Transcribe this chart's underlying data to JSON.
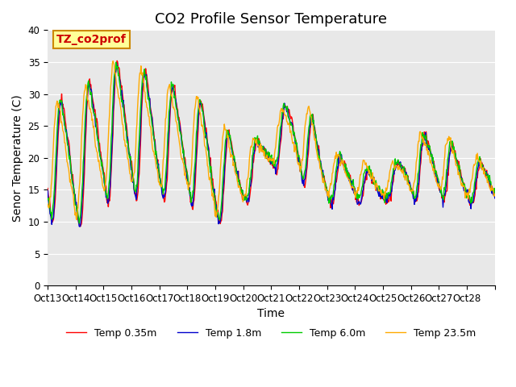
{
  "title": "CO2 Profile Sensor Temperature",
  "ylabel": "Senor Temperature (C)",
  "xlabel": "Time",
  "annotation": "TZ_co2prof",
  "annotation_color": "#cc0000",
  "annotation_bg": "#ffff99",
  "annotation_border": "#cc8800",
  "ylim": [
    0,
    40
  ],
  "yticks": [
    0,
    5,
    10,
    15,
    20,
    25,
    30,
    35,
    40
  ],
  "xtick_labels": [
    "Oct 13",
    "Oct 14",
    "Oct 15",
    "Oct 16",
    "Oct 17",
    "Oct 18",
    "Oct 19",
    "Oct 20",
    "Oct 21",
    "Oct 22",
    "Oct 23",
    "Oct 24",
    "Oct 25",
    "Oct 26",
    "Oct 27",
    "Oct 28"
  ],
  "legend": [
    "Temp 0.35m",
    "Temp 1.8m",
    "Temp 6.0m",
    "Temp 23.5m"
  ],
  "colors": [
    "#ff0000",
    "#0000cc",
    "#00cc00",
    "#ffaa00"
  ],
  "bg_color": "#e8e8e8",
  "line_width": 1.0,
  "title_fontsize": 13,
  "label_fontsize": 10,
  "tick_fontsize": 8.5
}
